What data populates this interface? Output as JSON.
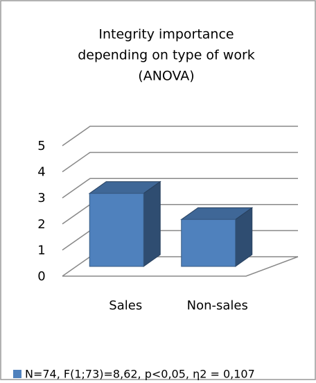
{
  "chart_data": {
    "type": "bar3d",
    "title": [
      "Integrity importance",
      "depending on type of work",
      "(ANOVA)"
    ],
    "categories": [
      "Sales",
      "Non-sales"
    ],
    "series": [
      {
        "name": "N=74, F(1;73)=8,62, p<0,05, η2 = 0,107",
        "color": "#4f81bd",
        "values": [
          2.8,
          1.8
        ]
      }
    ],
    "ylim": [
      0,
      5
    ],
    "yticks": [
      0,
      1,
      2,
      3,
      4,
      5
    ],
    "grid": true,
    "legend": "bottom"
  }
}
